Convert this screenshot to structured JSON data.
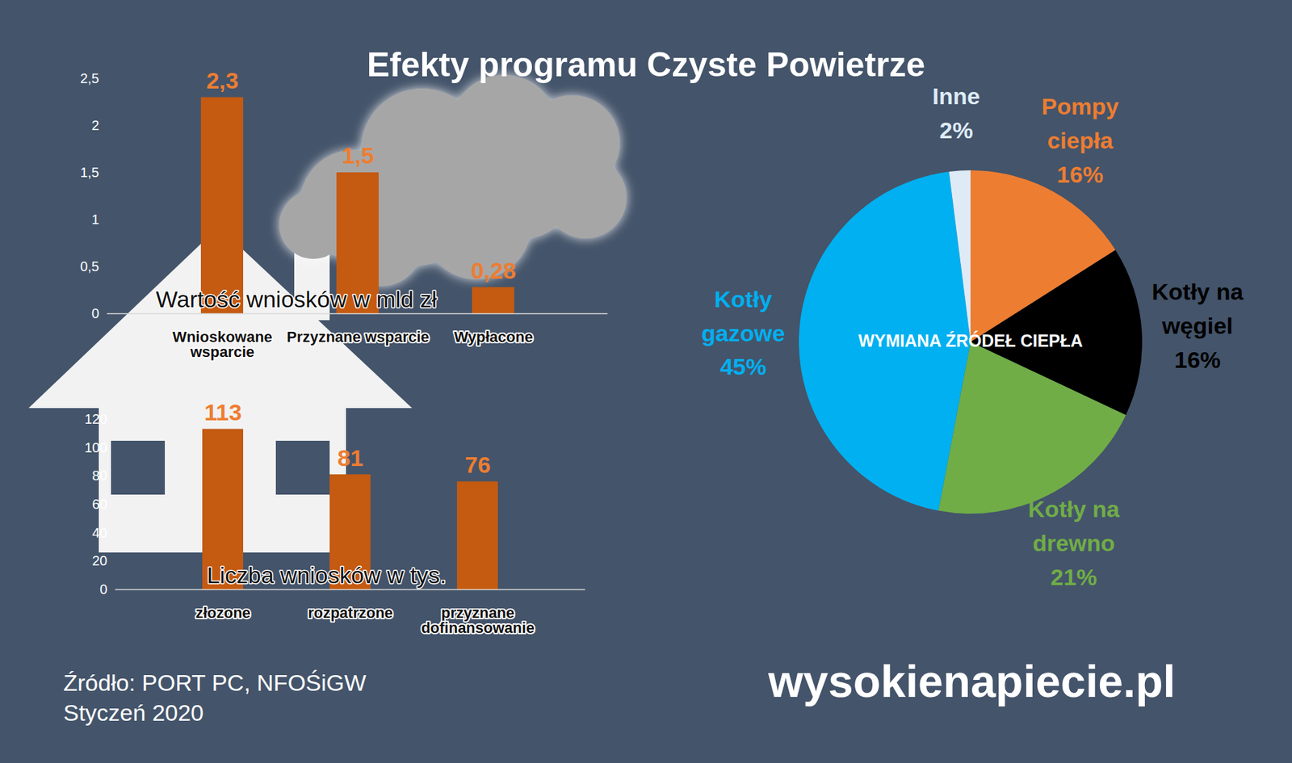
{
  "title": "Efekty programu Czyste Powietrze",
  "source": [
    "Źródło: PORT PC, NFOŚiGW",
    "Styczeń 2020"
  ],
  "brand": "wysokienapiecie.pl",
  "chart_data": [
    {
      "type": "bar",
      "title": "Wartość wniosków w mld zł",
      "categories": [
        "Wnioskowane wsparcie",
        "Przyznane wsparcie",
        "Wypłacone"
      ],
      "values": [
        2.3,
        1.5,
        0.28
      ],
      "value_labels": [
        "2,3",
        "1,5",
        "0,28"
      ],
      "color": "#c55a11",
      "ylim": [
        0,
        2.5
      ],
      "yticks": [
        0,
        {
          "value": 0.5,
          "label": "0,5"
        },
        1,
        {
          "value": 1.5,
          "label": "1,5"
        },
        2,
        {
          "value": 2.5,
          "label": "2,5"
        }
      ],
      "data_labels": true
    },
    {
      "type": "bar",
      "title": "Liczba wniosków w tys.",
      "categories": [
        "złozone",
        "rozpatrzone",
        "przyznane dofinansowanie"
      ],
      "values": [
        113,
        81,
        76
      ],
      "color": "#c55a11",
      "ylim": [
        0,
        120
      ],
      "yticks": [
        0,
        20,
        40,
        60,
        80,
        100,
        120
      ],
      "data_labels": true
    },
    {
      "type": "pie",
      "title": "WYMIANA ŹRÓDEŁ CIEPŁA",
      "categories": [
        "Pompy ciepła",
        "Kotły na węgiel",
        "Kotły na drewno",
        "Kotły gazowe",
        "Inne"
      ],
      "values": [
        16,
        16,
        21,
        45,
        2
      ],
      "value_labels": [
        "16%",
        "16%",
        "21%",
        "45%",
        "2%"
      ],
      "colors": [
        "#ed7d31",
        "#000000",
        "#70ad47",
        "#00b0f0",
        "#deebf7"
      ],
      "data_labels": true
    }
  ]
}
